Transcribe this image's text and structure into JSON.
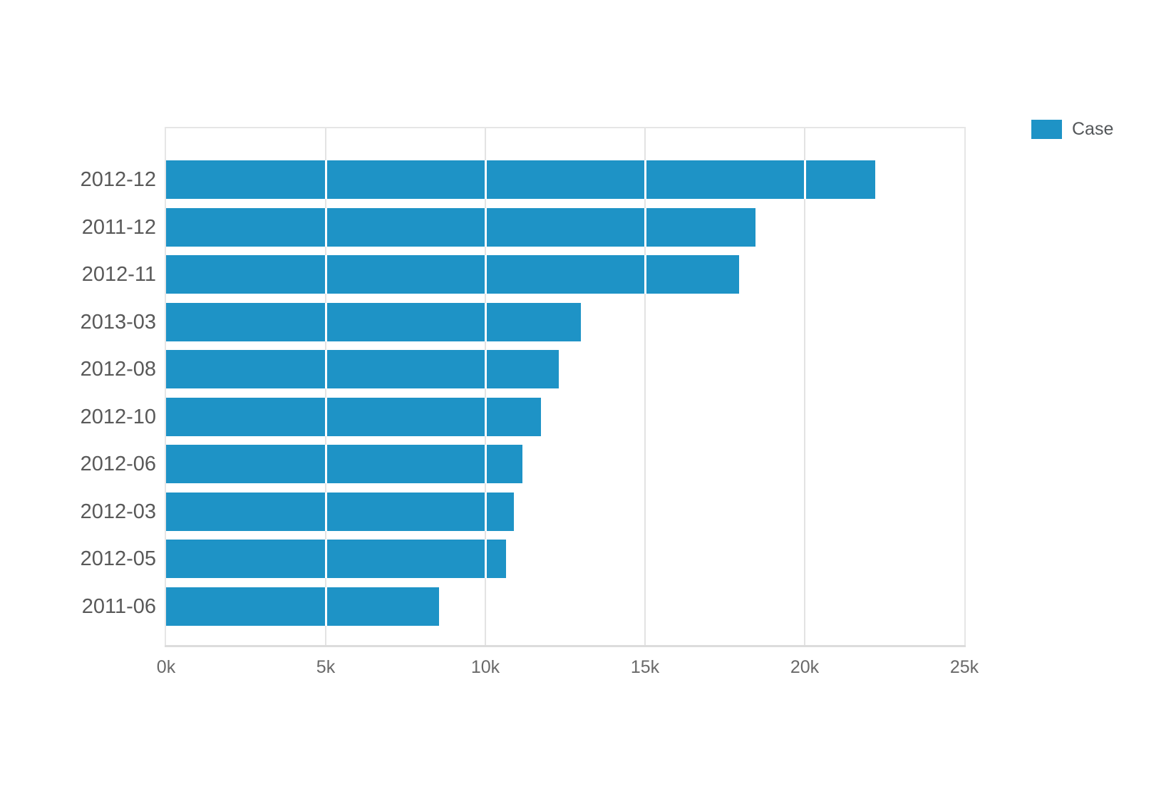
{
  "legend": {
    "label": "Case",
    "swatch_color": "#1e93c6"
  },
  "colors": {
    "bar": "#1e93c6",
    "gridline": "#e3e3e3",
    "axis_border": "#e6e6e6",
    "axis_bottom": "#dcdcdc",
    "y_label": "#595959",
    "x_label": "#696969",
    "legend_text": "#54575a"
  },
  "chart_data": {
    "type": "bar",
    "orientation": "horizontal",
    "title": "",
    "xlabel": "",
    "ylabel": "",
    "grid": true,
    "legend_position": "top-right",
    "categories": [
      "2012-12",
      "2011-12",
      "2012-11",
      "2013-03",
      "2012-08",
      "2012-10",
      "2012-06",
      "2012-03",
      "2012-05",
      "2011-06"
    ],
    "series": [
      {
        "name": "Case",
        "values": [
          22200,
          18450,
          17950,
          13000,
          12300,
          11750,
          11150,
          10900,
          10650,
          8550
        ]
      }
    ],
    "x_axis": {
      "min": 0,
      "max": 25000,
      "ticks": [
        0,
        5000,
        10000,
        15000,
        20000,
        25000
      ],
      "tick_labels": [
        "0k",
        "5k",
        "10k",
        "15k",
        "20k",
        "25k"
      ]
    }
  }
}
